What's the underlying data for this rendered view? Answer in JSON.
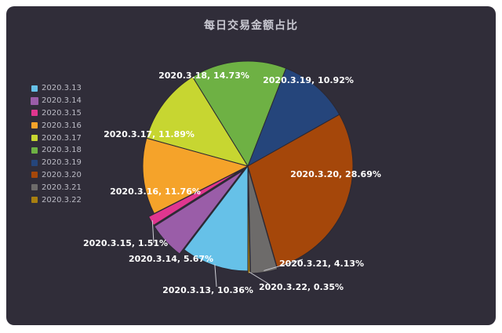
{
  "chart_data": {
    "type": "pie",
    "title": "每日交易金额占比",
    "legend_position": "left",
    "slices": [
      {
        "name": "2020.3.13",
        "value": 10.36,
        "label": "2020.3.13, 10.36%",
        "color": "#66c1e8"
      },
      {
        "name": "2020.3.14",
        "value": 5.67,
        "label": "2020.3.14, 5.67%",
        "color": "#9a5da8"
      },
      {
        "name": "2020.3.15",
        "value": 1.51,
        "label": "2020.3.15, 1.51%",
        "color": "#e0368f"
      },
      {
        "name": "2020.3.16",
        "value": 11.76,
        "label": "2020.3.16, 11.76%",
        "color": "#f5a32a"
      },
      {
        "name": "2020.3.17",
        "value": 11.89,
        "label": "2020.3.17, 11.89%",
        "color": "#c7d631"
      },
      {
        "name": "2020.3.18",
        "value": 14.73,
        "label": "2020.3.18, 14.73%",
        "color": "#6eb144"
      },
      {
        "name": "2020.3.19",
        "value": 10.92,
        "label": "2020.3.19, 10.92%",
        "color": "#25457b"
      },
      {
        "name": "2020.3.20",
        "value": 28.69,
        "label": "2020.3.20, 28.69%",
        "color": "#a5470a"
      },
      {
        "name": "2020.3.21",
        "value": 4.13,
        "label": "2020.3.21, 4.13%",
        "color": "#6d6b6a"
      },
      {
        "name": "2020.3.22",
        "value": 0.35,
        "label": "2020.3.22, 0.35%",
        "color": "#a87f10"
      }
    ]
  }
}
